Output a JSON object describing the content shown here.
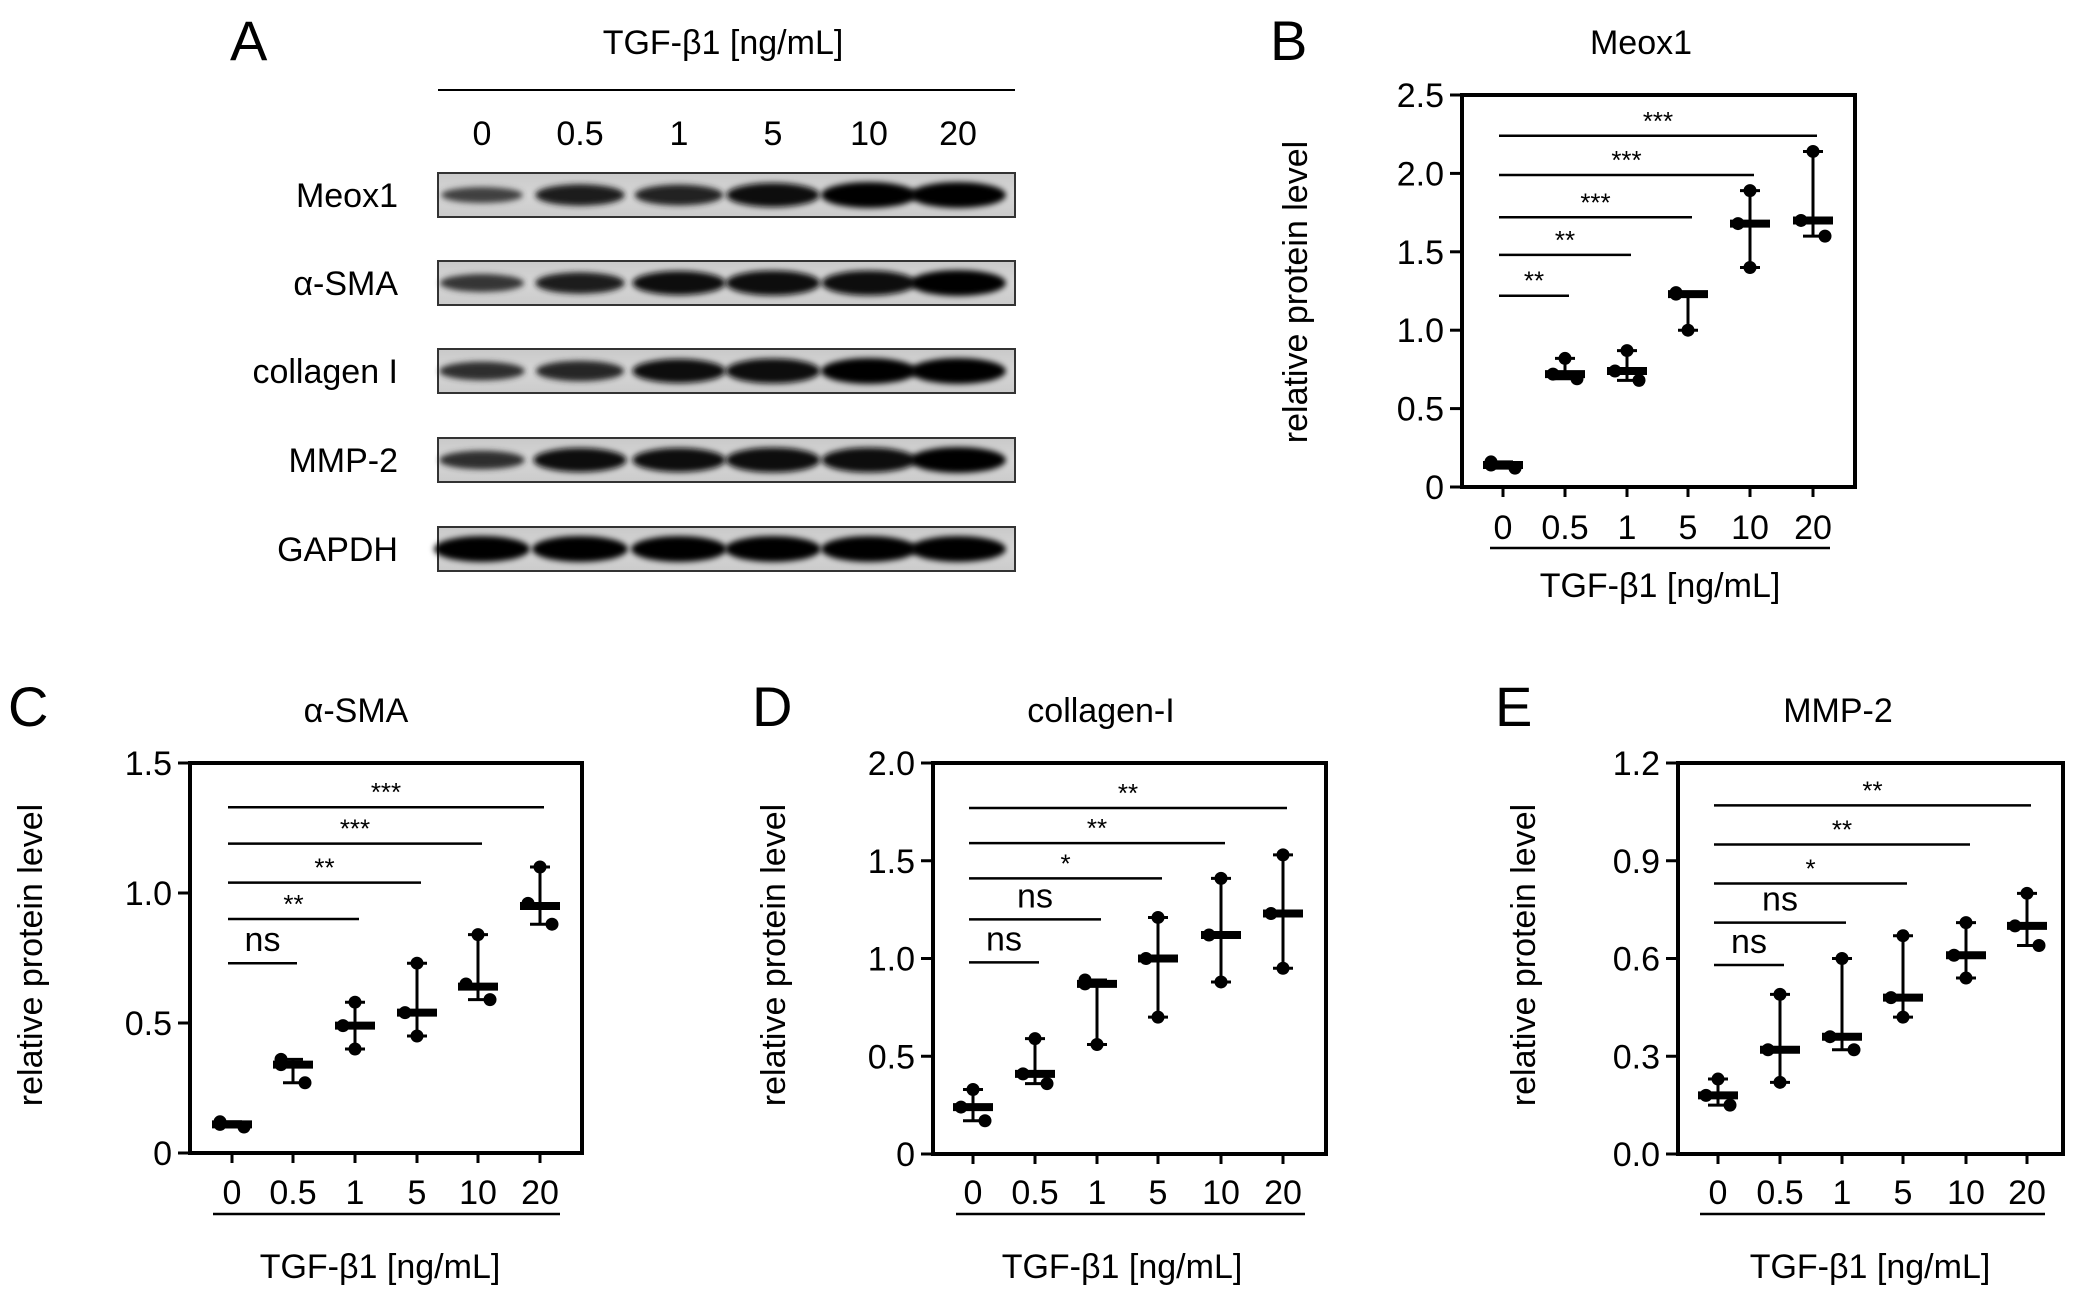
{
  "figure": {
    "panel_a": {
      "letter": "A",
      "title": "TGF-β1 [ng/mL]",
      "lanes": [
        "0",
        "0.5",
        "1",
        "5",
        "10",
        "20"
      ],
      "rows": [
        {
          "label": "Meox1",
          "intensity": [
            0.45,
            0.75,
            0.72,
            0.9,
            1.0,
            1.0
          ]
        },
        {
          "label": "α-SMA",
          "intensity": [
            0.55,
            0.75,
            0.9,
            0.95,
            0.95,
            1.0
          ]
        },
        {
          "label": "collagen I",
          "intensity": [
            0.6,
            0.7,
            0.9,
            0.95,
            1.0,
            1.0
          ]
        },
        {
          "label": "MMP-2",
          "intensity": [
            0.6,
            0.9,
            0.9,
            0.95,
            0.95,
            1.0
          ]
        },
        {
          "label": "GAPDH",
          "intensity": [
            1.0,
            1.0,
            1.0,
            1.0,
            1.0,
            1.0
          ]
        }
      ]
    }
  },
  "chart_data": [
    {
      "panel": "B",
      "type": "scatter",
      "title": "Meox1",
      "xlabel": "TGF-β1 [ng/mL]",
      "ylabel": "relative protein level",
      "categories": [
        "0",
        "0.5",
        "1",
        "5",
        "10",
        "20"
      ],
      "ylim": [
        0,
        2.5
      ],
      "yticks": [
        "0",
        "0.5",
        "1.0",
        "1.5",
        "2.0",
        "2.5"
      ],
      "ytick_values": [
        0,
        0.5,
        1.0,
        1.5,
        2.0,
        2.5
      ],
      "points": [
        [
          0.16,
          0.14,
          0.12
        ],
        [
          0.82,
          0.72,
          0.69
        ],
        [
          0.87,
          0.74,
          0.68
        ],
        [
          1.24,
          1.23,
          1.0
        ],
        [
          1.89,
          1.68,
          1.4
        ],
        [
          2.14,
          1.7,
          1.6
        ]
      ],
      "median": [
        0.14,
        0.72,
        0.74,
        1.23,
        1.68,
        1.7
      ],
      "range": [
        [
          0.12,
          0.16
        ],
        [
          0.69,
          0.82
        ],
        [
          0.68,
          0.87
        ],
        [
          1.0,
          1.24
        ],
        [
          1.4,
          1.89
        ],
        [
          1.6,
          2.14
        ]
      ],
      "significance": [
        {
          "from": "0",
          "to": "0.5",
          "label": "**",
          "y": 1.22
        },
        {
          "from": "0",
          "to": "1",
          "label": "**",
          "y": 1.48
        },
        {
          "from": "0",
          "to": "5",
          "label": "***",
          "y": 1.72
        },
        {
          "from": "0",
          "to": "10",
          "label": "***",
          "y": 1.99
        },
        {
          "from": "0",
          "to": "20",
          "label": "***",
          "y": 2.24
        }
      ]
    },
    {
      "panel": "C",
      "type": "scatter",
      "title": "α-SMA",
      "xlabel": "TGF-β1 [ng/mL]",
      "ylabel": "relative protein level",
      "categories": [
        "0",
        "0.5",
        "1",
        "5",
        "10",
        "20"
      ],
      "ylim": [
        0,
        1.5
      ],
      "yticks": [
        "0",
        "0.5",
        "1.0",
        "1.5"
      ],
      "ytick_values": [
        0,
        0.5,
        1.0,
        1.5
      ],
      "points": [
        [
          0.12,
          0.11,
          0.1
        ],
        [
          0.36,
          0.34,
          0.27
        ],
        [
          0.58,
          0.49,
          0.4
        ],
        [
          0.73,
          0.54,
          0.45
        ],
        [
          0.84,
          0.65,
          0.59
        ],
        [
          1.1,
          0.96,
          0.88
        ]
      ],
      "median": [
        0.11,
        0.34,
        0.49,
        0.54,
        0.64,
        0.95
      ],
      "range": [
        [
          0.1,
          0.12
        ],
        [
          0.27,
          0.36
        ],
        [
          0.4,
          0.58
        ],
        [
          0.45,
          0.73
        ],
        [
          0.59,
          0.84
        ],
        [
          0.88,
          1.1
        ]
      ],
      "significance": [
        {
          "from": "0",
          "to": "0.5",
          "label": "ns",
          "y": 0.73
        },
        {
          "from": "0",
          "to": "1",
          "label": "**",
          "y": 0.9
        },
        {
          "from": "0",
          "to": "5",
          "label": "**",
          "y": 1.04
        },
        {
          "from": "0",
          "to": "10",
          "label": "***",
          "y": 1.19
        },
        {
          "from": "0",
          "to": "20",
          "label": "***",
          "y": 1.33
        }
      ]
    },
    {
      "panel": "D",
      "type": "scatter",
      "title": "collagen-I",
      "xlabel": "TGF-β1 [ng/mL]",
      "ylabel": "relative protein level",
      "categories": [
        "0",
        "0.5",
        "1",
        "5",
        "10",
        "20"
      ],
      "ylim": [
        0,
        2.0
      ],
      "yticks": [
        "0",
        "0.5",
        "1.0",
        "1.5",
        "2.0"
      ],
      "ytick_values": [
        0,
        0.5,
        1.0,
        1.5,
        2.0
      ],
      "points": [
        [
          0.33,
          0.24,
          0.17
        ],
        [
          0.59,
          0.41,
          0.36
        ],
        [
          0.89,
          0.87,
          0.56
        ],
        [
          1.21,
          1.0,
          0.7
        ],
        [
          1.41,
          1.12,
          0.88
        ],
        [
          1.53,
          1.23,
          0.95
        ]
      ],
      "median": [
        0.24,
        0.41,
        0.87,
        1.0,
        1.12,
        1.23
      ],
      "range": [
        [
          0.17,
          0.33
        ],
        [
          0.36,
          0.59
        ],
        [
          0.56,
          0.89
        ],
        [
          0.7,
          1.21
        ],
        [
          0.88,
          1.41
        ],
        [
          0.95,
          1.53
        ]
      ],
      "significance": [
        {
          "from": "0",
          "to": "0.5",
          "label": "ns",
          "y": 0.98
        },
        {
          "from": "0",
          "to": "1",
          "label": "ns",
          "y": 1.2
        },
        {
          "from": "0",
          "to": "5",
          "label": "*",
          "y": 1.41
        },
        {
          "from": "0",
          "to": "10",
          "label": "**",
          "y": 1.59
        },
        {
          "from": "0",
          "to": "20",
          "label": "**",
          "y": 1.77
        }
      ]
    },
    {
      "panel": "E",
      "type": "scatter",
      "title": "MMP-2",
      "xlabel": "TGF-β1 [ng/mL]",
      "ylabel": "relative protein level",
      "categories": [
        "0",
        "0.5",
        "1",
        "5",
        "10",
        "20"
      ],
      "ylim": [
        0,
        1.2
      ],
      "yticks": [
        "0.0",
        "0.3",
        "0.6",
        "0.9",
        "1.2"
      ],
      "ytick_values": [
        0,
        0.3,
        0.6,
        0.9,
        1.2
      ],
      "points": [
        [
          0.23,
          0.18,
          0.15
        ],
        [
          0.49,
          0.32,
          0.22
        ],
        [
          0.6,
          0.36,
          0.32
        ],
        [
          0.67,
          0.48,
          0.42
        ],
        [
          0.71,
          0.61,
          0.54
        ],
        [
          0.8,
          0.7,
          0.64
        ]
      ],
      "median": [
        0.18,
        0.32,
        0.36,
        0.48,
        0.61,
        0.7
      ],
      "range": [
        [
          0.15,
          0.23
        ],
        [
          0.22,
          0.49
        ],
        [
          0.32,
          0.6
        ],
        [
          0.42,
          0.67
        ],
        [
          0.54,
          0.71
        ],
        [
          0.64,
          0.8
        ]
      ],
      "significance": [
        {
          "from": "0",
          "to": "0.5",
          "label": "ns",
          "y": 0.58
        },
        {
          "from": "0",
          "to": "1",
          "label": "ns",
          "y": 0.71
        },
        {
          "from": "0",
          "to": "5",
          "label": "*",
          "y": 0.83
        },
        {
          "from": "0",
          "to": "10",
          "label": "**",
          "y": 0.95
        },
        {
          "from": "0",
          "to": "20",
          "label": "**",
          "y": 1.07
        }
      ]
    }
  ]
}
